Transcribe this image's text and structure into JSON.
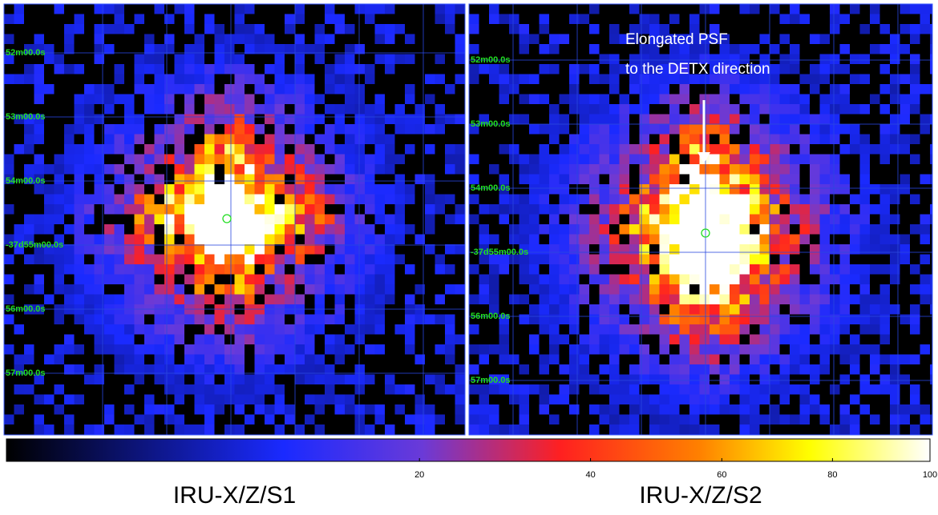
{
  "panels": [
    {
      "caption": "IRU-X/Z/S1",
      "dec_labels": [
        "52m00.0s",
        "53m00.0s",
        "54m00.0s",
        "-37d55m00.0s",
        "56m00.0s",
        "57m00.0s"
      ]
    },
    {
      "caption": "IRU-X/Z/S2",
      "dec_labels": [
        "52m00.0s",
        "53m00.0s",
        "54m00.0s",
        "-37d55m00.0s",
        "56m00.0s",
        "57m00.0s"
      ],
      "annotation": [
        "Elongated PSF",
        "to the DETX direction"
      ]
    }
  ],
  "colorbar": {
    "scale": "sqrt",
    "range": [
      0,
      100
    ],
    "ticks": [
      20,
      40,
      60,
      80,
      100
    ]
  }
}
